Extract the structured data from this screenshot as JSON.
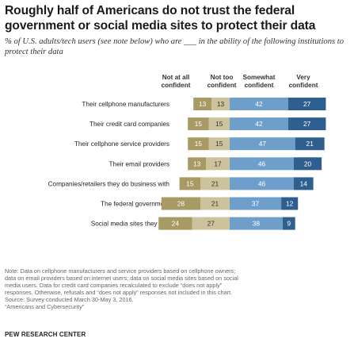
{
  "title": "Roughly half of Americans do not trust the federal government or social media sites to protect their data",
  "subtitle": "% of U.S. adults/tech users (see note below) who are ___ in the ability of the following institutions to protect their data",
  "chart_data": {
    "type": "bar",
    "orientation": "horizontal",
    "stacked": "diverging",
    "categories": [
      "Their cellphone manufacturers",
      "Their credit card companies",
      "Their cellphone service providers",
      "Their email providers",
      "Companies/retailers they do business with",
      "The federal government",
      "Social media sites they use"
    ],
    "series": [
      {
        "name": "Not at all confident",
        "color": "#a89a65",
        "side": "left",
        "values": [
          13,
          15,
          15,
          13,
          15,
          28,
          24
        ]
      },
      {
        "name": "Not too confident",
        "color": "#ccc39c",
        "side": "left",
        "values": [
          13,
          15,
          15,
          17,
          21,
          21,
          27
        ]
      },
      {
        "name": "Somewhat confident",
        "color": "#6e9fca",
        "side": "right",
        "values": [
          42,
          42,
          47,
          46,
          46,
          37,
          38
        ]
      },
      {
        "name": "Very confident",
        "color": "#2e5f8e",
        "side": "right",
        "values": [
          27,
          27,
          21,
          20,
          14,
          12,
          9
        ]
      }
    ],
    "legend_placement": "top",
    "grid": false
  },
  "note_lines": [
    "Note: Data on cellphone manufacturers and service providers based on cellphone owners;",
    "data on email providers based on internet users; data on social media sites based on social",
    "media users. Data for credit card companies recalculated to exclude “does not apply”",
    "responses. Otherwise, refusals and “does not apply” responses not included in this chart.",
    "Source: Survey conducted March 30-May 3, 2016.",
    "“Americans and Cybersecurity”"
  ],
  "source_name": "PEW RESEARCH CENTER"
}
